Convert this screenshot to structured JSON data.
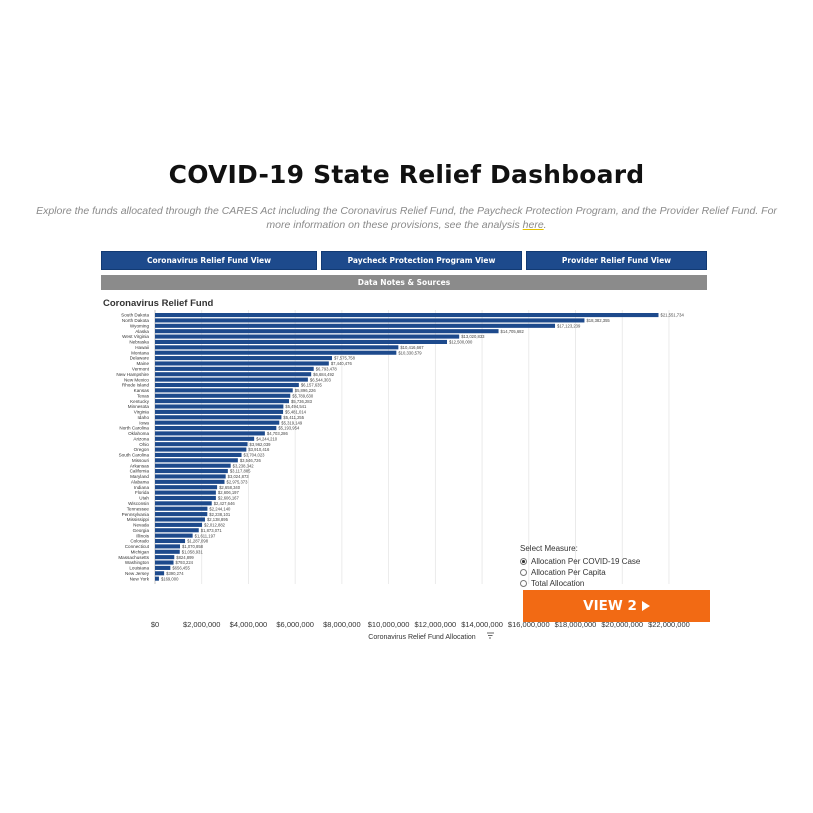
{
  "page": {
    "title": "COVID-19 State Relief Dashboard",
    "subtitle_text": "Explore the funds allocated through the CARES Act including the Coronavirus Relief Fund, the Paycheck Protection Program, and the Provider Relief Fund. For more information on these provisions, see the analysis",
    "subtitle_link": "here",
    "subtitle_end": "."
  },
  "nav": {
    "crf_view": "Coronavirus Relief Fund View",
    "ppp_view": "Paycheck Protection Program View",
    "prf_view": "Provider Relief Fund View",
    "data_notes": "Data Notes & Sources"
  },
  "measure": {
    "label": "Select Measure:",
    "options": [
      "Allocation Per COVID-19 Case",
      "Allocation Per Capita",
      "Total Allocation"
    ],
    "selected": "Allocation Per COVID-19 Case"
  },
  "view2_label": "VIEW 2",
  "colors": {
    "bar": "#1d4a8c",
    "nav": "#1d4a8c",
    "notes": "#8b8b8b",
    "view_button": "#f26a14"
  },
  "icons": {
    "sort": "sort-icon",
    "play": "play-triangle-icon"
  },
  "chart_data": {
    "type": "bar",
    "orientation": "horizontal",
    "title": "Coronavirus Relief Fund",
    "xlabel": "Coronavirus Relief Fund Allocation",
    "xlim": [
      0,
      23500000
    ],
    "ticks": [
      0,
      2000000,
      4000000,
      6000000,
      8000000,
      10000000,
      12000000,
      14000000,
      16000000,
      18000000,
      20000000,
      22000000
    ],
    "tick_labels": [
      "$0",
      "$2,000,000",
      "$4,000,000",
      "$6,000,000",
      "$8,000,000",
      "$10,000,000",
      "$12,000,000",
      "$14,000,000",
      "$16,000,000",
      "$18,000,000",
      "$20,000,000",
      "$22,000,000"
    ],
    "grid": true,
    "categories": [
      "South Dakota",
      "North Dakota",
      "Wyoming",
      "Alaska",
      "West Virginia",
      "Nebraska",
      "Hawaii",
      "Montana",
      "Delaware",
      "Maine",
      "Vermont",
      "New Hampshire",
      "New Mexico",
      "Rhode Island",
      "Kansas",
      "Texas",
      "Kentucky",
      "Minnesota",
      "Virginia",
      "Idaho",
      "Iowa",
      "North Carolina",
      "Oklahoma",
      "Arizona",
      "Ohio",
      "Oregon",
      "South Carolina",
      "Missouri",
      "Arkansas",
      "California",
      "Maryland",
      "Alabama",
      "Indiana",
      "Florida",
      "Utah",
      "Wisconsin",
      "Tennessee",
      "Pennsylvania",
      "Mississippi",
      "Nevada",
      "Georgia",
      "Illinois",
      "Colorado",
      "Connecticut",
      "Michigan",
      "Massachusetts",
      "Washington",
      "Louisiana",
      "New Jersey",
      "New York"
    ],
    "values": [
      21551734,
      18382355,
      17123239,
      14705682,
      13020833,
      12500000,
      10416667,
      10330579,
      7575758,
      7440476,
      6793478,
      6684492,
      6544303,
      6157635,
      5896226,
      5789630,
      5736283,
      5494541,
      5481014,
      5411255,
      5319149,
      5193954,
      4703286,
      4244210,
      3962039,
      3910416,
      3704023,
      3546726,
      3238342,
      3117885,
      3024873,
      2975373,
      2658340,
      2606197,
      2606167,
      2427646,
      2244140,
      2238101,
      2138895,
      2012882,
      1873071,
      1611197,
      1287098,
      1070858,
      1058931,
      824899,
      793224,
      656455,
      390274,
      169000
    ],
    "value_labels": [
      "$21,551,734",
      "$18,382,355",
      "$17,123,239",
      "$14,705,682",
      "$13,020,833",
      "$12,500,000",
      "$10,416,667",
      "$10,330,579",
      "$7,575,758",
      "$7,440,476",
      "$6,793,478",
      "$6,684,492",
      "$6,544,303",
      "$6,157,635",
      "$5,896,226",
      "$5,789,630",
      "$5,736,283",
      "$5,494,541",
      "$5,481,014",
      "$5,411,255",
      "$5,319,149",
      "$5,193,954",
      "$4,703,286",
      "$4,244,210",
      "$3,962,039",
      "$3,910,416",
      "$3,704,023",
      "$3,546,726",
      "$3,238,342",
      "$3,117,885",
      "$3,024,873",
      "$2,975,373",
      "$2,658,340",
      "$2,606,197",
      "$2,606,167",
      "$2,427,646",
      "$2,244,140",
      "$2,238,101",
      "$2,138,895",
      "$2,012,882",
      "$1,873,071",
      "$1,611,197",
      "$1,287,098",
      "$1,070,858",
      "$1,058,931",
      "$824,899",
      "$793,224",
      "$656,455",
      "$390,274",
      "$169,000"
    ]
  }
}
